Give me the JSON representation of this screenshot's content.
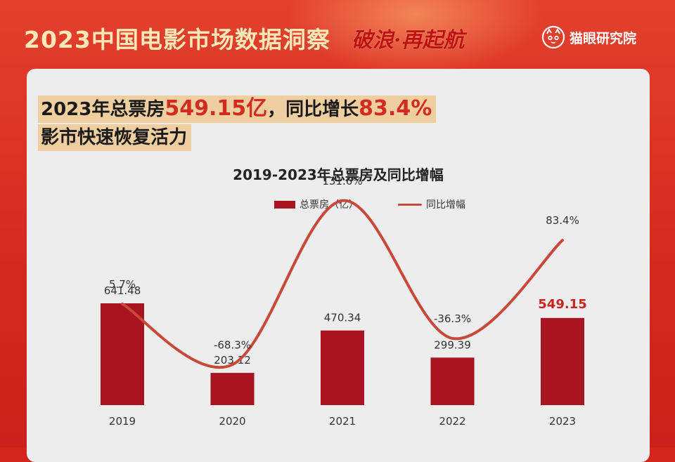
{
  "header": {
    "title": "2023中国电影市场数据洞察",
    "slogan": "破浪·再起航",
    "brand": "猫眼研究院",
    "brand_logo_icon": "cat-eye-icon"
  },
  "headline": {
    "line1_prefix": "2023年总票房",
    "line1_value": "549.15亿",
    "line1_mid": "，同比增长",
    "line1_growth": "83.4%",
    "line2": "影市快速恢复活力"
  },
  "colors": {
    "accent_red": "#d22c20",
    "bar": "#a8141f",
    "line": "#c8483a",
    "highlight_bg": "#efcea0"
  },
  "chart_data": {
    "type": "bar",
    "title": "2019-2023年总票房及同比增幅",
    "categories": [
      "2019",
      "2020",
      "2021",
      "2022",
      "2023"
    ],
    "series": [
      {
        "name": "总票房（亿）",
        "type": "bar",
        "values": [
          641.48,
          203.12,
          470.34,
          299.39,
          549.15
        ],
        "labels": [
          "641.48",
          "203.12",
          "470.34",
          "299.39",
          "549.15"
        ]
      },
      {
        "name": "同比增幅",
        "type": "line",
        "values": [
          5.7,
          -68.3,
          131.6,
          -36.3,
          83.4
        ],
        "labels": [
          "5.7%",
          "-68.3%",
          "131.6%",
          "-36.3%",
          "83.4%"
        ]
      }
    ],
    "highlight_category": "2023",
    "legend": "top-center",
    "grid": false
  }
}
